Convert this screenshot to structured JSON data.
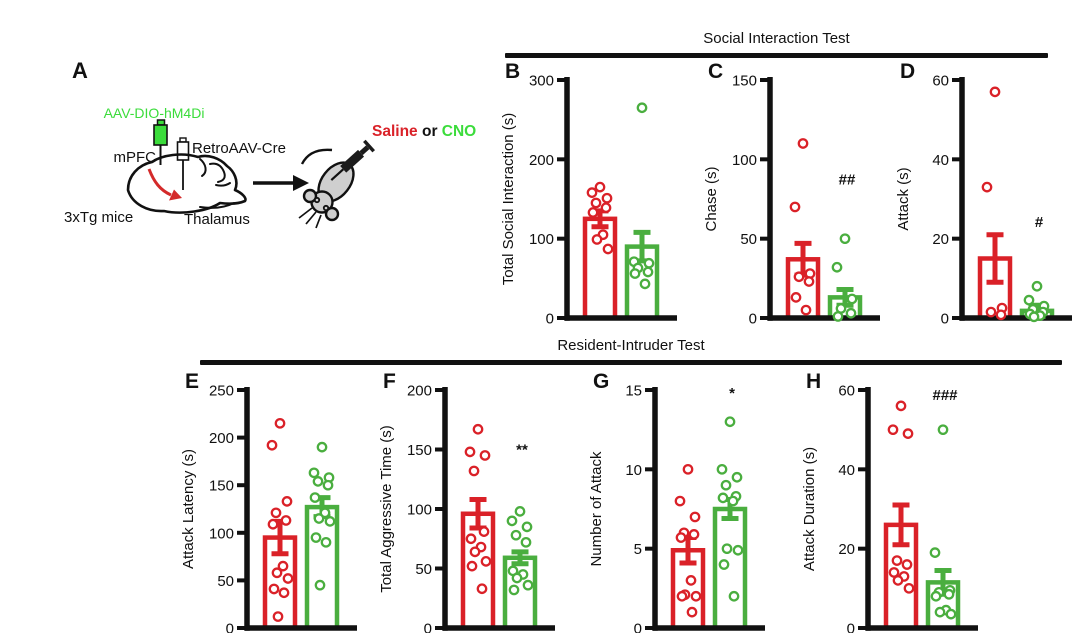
{
  "panel_a": {
    "label": "A",
    "virus_label": "AAV-DIO-hM4Di",
    "retro_label": "RetroAAV-Cre",
    "region_label": "mPFC",
    "thalamus_label": "Thalamus",
    "mice_label": "3xTg mice",
    "injection_saline": "Saline",
    "injection_or": " or ",
    "injection_cno": "CNO"
  },
  "sections": [
    {
      "title": "Social Interaction Test"
    },
    {
      "title": "Resident-Intruder Test"
    }
  ],
  "colors": {
    "saline_red": "#da2128",
    "cno_green": "#4aад3f",
    "bar_green": "#4aae3f",
    "text_green": "#3bdc3b",
    "black": "#111111"
  },
  "chart_data": [
    {
      "panel": "B",
      "type": "bar",
      "section": "Social Interaction Test",
      "ylabel": "Total Social Interaction (s)",
      "ylim": [
        0,
        300
      ],
      "yticks": [
        0,
        100,
        200,
        300
      ],
      "series": [
        {
          "name": "Saline",
          "color": "#da2128",
          "mean": 125,
          "sem": 10,
          "points": [
            165,
            158,
            151,
            145,
            139,
            133,
            105,
            99,
            87
          ]
        },
        {
          "name": "CNO",
          "color": "#4aae3f",
          "mean": 90,
          "sem": 18,
          "points": [
            265,
            71,
            69,
            63,
            58,
            56,
            43
          ]
        }
      ],
      "annotation": null
    },
    {
      "panel": "C",
      "type": "bar",
      "section": "Social Interaction Test",
      "ylabel": "Chase (s)",
      "ylim": [
        0,
        150
      ],
      "yticks": [
        0,
        50,
        100,
        150
      ],
      "series": [
        {
          "name": "Saline",
          "color": "#da2128",
          "mean": 37,
          "sem": 10,
          "points": [
            110,
            70,
            28,
            26,
            23,
            13,
            5
          ]
        },
        {
          "name": "CNO",
          "color": "#4aae3f",
          "mean": 13,
          "sem": 5,
          "points": [
            50,
            32,
            12,
            6,
            3,
            1
          ]
        }
      ],
      "annotation": {
        "text": "##",
        "y": 84
      }
    },
    {
      "panel": "D",
      "type": "bar",
      "section": "Social Interaction Test",
      "ylabel": "Attack (s)",
      "ylim": [
        0,
        60
      ],
      "yticks": [
        0,
        20,
        40,
        60
      ],
      "series": [
        {
          "name": "Saline",
          "color": "#da2128",
          "mean": 15,
          "sem": 6,
          "points": [
            57,
            33,
            2.5,
            1.5,
            0.8
          ]
        },
        {
          "name": "CNO",
          "color": "#4aae3f",
          "mean": 1.8,
          "sem": 1.4,
          "points": [
            8,
            4.5,
            3,
            2.2,
            1.5,
            1,
            0.6,
            0.3
          ]
        }
      ],
      "annotation": {
        "text": "#",
        "y": 23
      }
    },
    {
      "panel": "E",
      "type": "bar",
      "section": "Resident-Intruder Test",
      "ylabel": "Attack Latency (s)",
      "ylim": [
        0,
        250
      ],
      "yticks": [
        0,
        50,
        100,
        150,
        200,
        250
      ],
      "series": [
        {
          "name": "Saline",
          "color": "#da2128",
          "mean": 95,
          "sem": 17,
          "points": [
            215,
            192,
            133,
            121,
            113,
            109,
            65,
            58,
            52,
            41,
            37,
            12
          ]
        },
        {
          "name": "CNO",
          "color": "#4aae3f",
          "mean": 127,
          "sem": 10,
          "points": [
            190,
            163,
            158,
            154,
            150,
            137,
            121,
            115,
            112,
            95,
            90,
            45
          ]
        }
      ],
      "annotation": null
    },
    {
      "panel": "F",
      "type": "bar",
      "section": "Resident-Intruder Test",
      "ylabel": "Total Aggressive Time (s)",
      "ylim": [
        0,
        200
      ],
      "yticks": [
        0,
        50,
        100,
        150,
        200
      ],
      "series": [
        {
          "name": "Saline",
          "color": "#da2128",
          "mean": 96,
          "sem": 12,
          "points": [
            167,
            148,
            145,
            132,
            81,
            75,
            68,
            64,
            56,
            52,
            33
          ]
        },
        {
          "name": "CNO",
          "color": "#4aae3f",
          "mean": 59,
          "sem": 5,
          "points": [
            98,
            90,
            85,
            78,
            72,
            48,
            45,
            42,
            36,
            32
          ]
        }
      ],
      "annotation": {
        "text": "**",
        "y": 146
      }
    },
    {
      "panel": "G",
      "type": "bar",
      "section": "Resident-Intruder Test",
      "ylabel": "Number of Attack",
      "ylim": [
        0,
        15
      ],
      "yticks": [
        0,
        5,
        10,
        15
      ],
      "series": [
        {
          "name": "Saline",
          "color": "#da2128",
          "mean": 4.9,
          "sem": 0.8,
          "points": [
            10,
            8,
            7,
            6,
            5.9,
            5.7,
            3,
            2.1,
            2,
            2,
            1
          ]
        },
        {
          "name": "CNO",
          "color": "#4aae3f",
          "mean": 7.5,
          "sem": 0.6,
          "points": [
            13,
            10,
            9.5,
            9,
            8.3,
            8.2,
            8,
            5,
            4.9,
            4,
            2
          ]
        }
      ],
      "annotation": {
        "text": "*",
        "y": 14.5
      }
    },
    {
      "panel": "H",
      "type": "bar",
      "section": "Resident-Intruder Test",
      "ylabel": "Attack Duration (s)",
      "ylim": [
        0,
        60
      ],
      "yticks": [
        0,
        20,
        40,
        60
      ],
      "series": [
        {
          "name": "Saline",
          "color": "#da2128",
          "mean": 26,
          "sem": 5,
          "points": [
            56,
            50,
            49,
            17,
            16,
            14,
            13,
            12,
            10
          ]
        },
        {
          "name": "CNO",
          "color": "#4aae3f",
          "mean": 11.5,
          "sem": 3,
          "points": [
            50,
            19,
            9.5,
            9,
            8.5,
            8,
            4.5,
            4,
            3.5
          ]
        }
      ],
      "annotation": {
        "text": "###",
        "y": 57.5
      }
    }
  ]
}
